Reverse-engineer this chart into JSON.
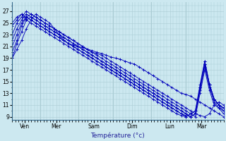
{
  "xlabel": "Température (°c)",
  "background_color": "#cce8f0",
  "grid_color": "#aaccd4",
  "line_color": "#0000bb",
  "ylim": [
    8.5,
    28.5
  ],
  "yticks": [
    9,
    11,
    13,
    15,
    17,
    19,
    21,
    23,
    25,
    27
  ],
  "day_labels": [
    "Ven",
    "Mer",
    "Sam",
    "Dim",
    "Lun",
    "Mar"
  ],
  "day_tick_positions": [
    8,
    28,
    52,
    76,
    100,
    120
  ],
  "vline_positions": [
    18,
    42,
    64,
    88,
    110
  ],
  "xlim": [
    0,
    134
  ],
  "series": [
    [
      19.0,
      20.5,
      22.0,
      24.0,
      25.5,
      26.5,
      26.0,
      25.5,
      25.0,
      24.0,
      23.0,
      22.0,
      21.5,
      21.2,
      21.0,
      20.8,
      20.5,
      20.3,
      20.0,
      19.8,
      19.5,
      19.2,
      19.0,
      18.8,
      18.5,
      18.2,
      18.0,
      17.5,
      17.0,
      16.5,
      16.0,
      15.5,
      15.0,
      14.5,
      14.0,
      13.5,
      13.0,
      12.8,
      12.5,
      12.0,
      11.5,
      11.0,
      10.5,
      10.0,
      9.5,
      9.0
    ],
    [
      23.0,
      25.0,
      26.0,
      27.0,
      26.5,
      26.0,
      25.5,
      25.0,
      24.5,
      24.0,
      23.5,
      23.0,
      22.5,
      22.0,
      21.5,
      21.0,
      20.5,
      20.0,
      19.8,
      19.5,
      19.0,
      18.5,
      18.0,
      17.5,
      17.0,
      16.5,
      16.0,
      15.5,
      15.0,
      14.5,
      14.0,
      13.5,
      13.0,
      12.5,
      12.0,
      11.5,
      11.0,
      10.5,
      10.0,
      9.5,
      9.2,
      9.0,
      9.5,
      11.0,
      11.5,
      11.0
    ],
    [
      24.5,
      25.5,
      26.5,
      26.0,
      25.5,
      25.0,
      24.5,
      24.0,
      23.5,
      23.0,
      22.5,
      22.0,
      21.5,
      21.0,
      20.5,
      20.0,
      19.5,
      19.0,
      18.5,
      18.0,
      17.5,
      17.0,
      16.5,
      16.0,
      15.5,
      15.0,
      14.5,
      14.0,
      13.5,
      13.0,
      12.5,
      12.0,
      11.5,
      11.0,
      10.5,
      10.0,
      9.5,
      9.2,
      9.0,
      9.5,
      14.0,
      18.0,
      14.5,
      12.0,
      11.0,
      10.5
    ],
    [
      22.0,
      24.0,
      25.5,
      26.5,
      26.0,
      25.5,
      25.0,
      24.5,
      24.0,
      23.5,
      23.0,
      22.5,
      22.0,
      21.5,
      21.0,
      20.5,
      20.0,
      19.5,
      19.0,
      18.5,
      18.0,
      17.5,
      17.0,
      16.5,
      16.0,
      15.5,
      15.0,
      14.5,
      14.0,
      13.5,
      13.0,
      12.5,
      12.0,
      11.5,
      11.0,
      10.5,
      10.0,
      9.5,
      9.0,
      9.5,
      13.5,
      17.5,
      14.0,
      11.5,
      10.5,
      10.0
    ],
    [
      21.0,
      23.0,
      25.0,
      26.0,
      25.5,
      25.0,
      24.5,
      24.0,
      23.5,
      23.0,
      22.5,
      22.0,
      21.5,
      21.0,
      20.5,
      20.0,
      19.5,
      19.0,
      18.5,
      18.0,
      17.5,
      17.0,
      16.5,
      16.0,
      15.5,
      15.0,
      14.5,
      14.0,
      13.5,
      13.0,
      12.5,
      12.0,
      11.5,
      11.0,
      10.5,
      10.0,
      9.5,
      9.0,
      9.5,
      10.0,
      14.5,
      18.5,
      14.5,
      12.0,
      11.0,
      10.5
    ],
    [
      20.0,
      22.0,
      24.5,
      26.0,
      26.5,
      26.0,
      25.5,
      25.0,
      24.5,
      24.0,
      23.5,
      23.0,
      22.5,
      22.0,
      21.5,
      21.0,
      20.5,
      20.0,
      19.5,
      19.0,
      18.5,
      18.0,
      17.5,
      17.0,
      16.5,
      16.0,
      15.5,
      15.0,
      14.5,
      14.0,
      13.5,
      13.0,
      12.5,
      12.0,
      11.5,
      11.0,
      10.5,
      10.0,
      9.5,
      9.0,
      13.0,
      17.0,
      13.5,
      11.0,
      10.5,
      9.5
    ],
    [
      25.0,
      26.0,
      26.5,
      25.5,
      25.0,
      24.5,
      24.0,
      23.5,
      23.0,
      22.5,
      22.0,
      21.5,
      21.0,
      20.5,
      20.0,
      19.5,
      19.0,
      18.5,
      18.0,
      17.5,
      17.0,
      16.5,
      16.0,
      15.5,
      15.0,
      14.5,
      14.0,
      13.5,
      13.0,
      12.5,
      12.0,
      11.5,
      11.0,
      10.5,
      10.0,
      9.5,
      9.2,
      9.0,
      9.5,
      10.0,
      14.0,
      18.0,
      14.5,
      12.0,
      11.0,
      10.0
    ],
    [
      19.0,
      21.5,
      23.5,
      25.5,
      26.0,
      25.5,
      25.0,
      24.5,
      24.0,
      23.5,
      23.0,
      22.5,
      22.0,
      21.5,
      21.0,
      20.5,
      20.0,
      19.5,
      19.0,
      18.5,
      18.0,
      17.5,
      17.0,
      16.5,
      16.0,
      15.5,
      15.0,
      14.5,
      14.0,
      13.5,
      13.0,
      12.5,
      12.0,
      11.5,
      11.0,
      10.5,
      10.0,
      9.5,
      9.0,
      9.5,
      14.0,
      18.5,
      14.5,
      12.0,
      11.0,
      10.5
    ]
  ]
}
